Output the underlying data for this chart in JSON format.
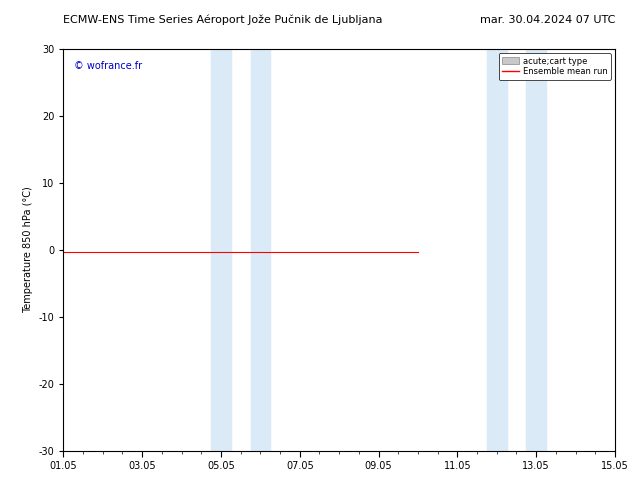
{
  "title_left": "ECMW-ENS Time Series Aéroport Jože Pučnik de Ljubljana",
  "title_right": "mar. 30.04.2024 07 UTC",
  "ylabel": "Temperature 850 hPa (°C)",
  "ylim": [
    -30,
    30
  ],
  "yticks": [
    -30,
    -20,
    -10,
    0,
    10,
    20,
    30
  ],
  "xtick_labels": [
    "01.05",
    "03.05",
    "05.05",
    "07.05",
    "09.05",
    "11.05",
    "13.05",
    "15.05"
  ],
  "xtick_positions": [
    0,
    2,
    4,
    6,
    8,
    10,
    12,
    14
  ],
  "shaded_regions": [
    {
      "xstart": 3.75,
      "xend": 4.25,
      "color": "#daeaf7"
    },
    {
      "xstart": 4.75,
      "xend": 5.25,
      "color": "#daeaf7"
    },
    {
      "xstart": 10.75,
      "xend": 11.25,
      "color": "#daeaf7"
    },
    {
      "xstart": 11.75,
      "xend": 12.25,
      "color": "#daeaf7"
    }
  ],
  "horizontal_line_y": -0.3,
  "horizontal_line_color": "#ff0000",
  "horizontal_line_xmin": 0.0,
  "horizontal_line_xmax": 0.643,
  "legend_entries": [
    {
      "label": "acute;cart type",
      "color": "#c8c8c8",
      "style": "box"
    },
    {
      "label": "Ensemble mean run",
      "color": "#ff0000",
      "style": "line"
    }
  ],
  "watermark": "© wofrance.fr",
  "watermark_color": "#0000cc",
  "background_color": "#ffffff",
  "plot_background": "#ffffff",
  "border_color": "#000000",
  "title_fontsize": 8,
  "axis_fontsize": 7,
  "tick_fontsize": 7,
  "ylabel_fontsize": 7
}
